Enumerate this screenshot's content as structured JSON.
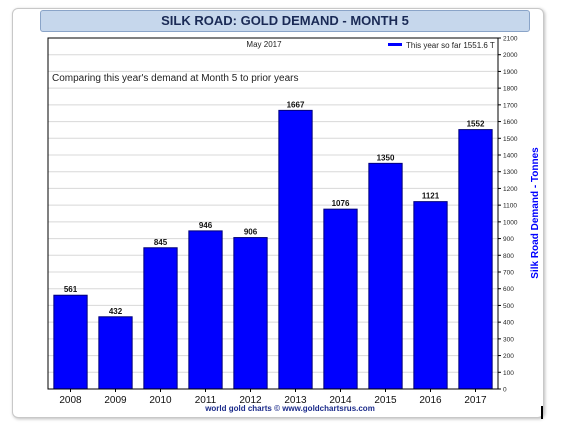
{
  "chart_data": {
    "type": "bar",
    "title": "SILK ROAD: GOLD DEMAND - MONTH 5",
    "subtitle": "May 2017",
    "annotation": "Comparing this year's demand at Month 5 to prior years",
    "legend": {
      "label": "This year so far 1551.6 T",
      "placement": "top-right"
    },
    "ylabel": "Silk Road Demand - Tonnes",
    "xlabel": "",
    "source": "world gold charts © www.goldchartsrus.com",
    "categories": [
      "2008",
      "2009",
      "2010",
      "2011",
      "2012",
      "2013",
      "2014",
      "2015",
      "2016",
      "2017"
    ],
    "values": [
      561,
      432,
      845,
      946,
      906,
      1667,
      1076,
      1350,
      1121,
      1552
    ],
    "data_labels": [
      "561",
      "432",
      "845",
      "946",
      "906",
      "1667",
      "1076",
      "1350",
      "1121",
      "1552"
    ],
    "ylim": [
      0,
      2100
    ],
    "yticks": [
      0,
      100,
      200,
      300,
      400,
      500,
      600,
      700,
      800,
      900,
      1000,
      1100,
      1200,
      1300,
      1400,
      1500,
      1600,
      1700,
      1800,
      1900,
      2000,
      2100
    ],
    "y_axis_side": "right",
    "grid": true,
    "colors": {
      "bar": "#0000ff",
      "bar_edge": "#00007a",
      "grid": "#d8d8d8",
      "title_bg": "#c6d7ec",
      "ylabel": "#0000ff",
      "source": "#1a2a8a"
    }
  }
}
